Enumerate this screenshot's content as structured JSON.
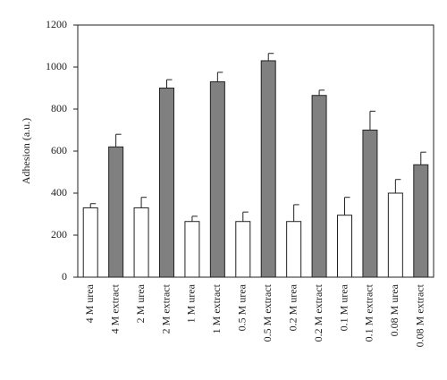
{
  "chart_data": {
    "type": "bar",
    "y_label": "Adhesion (a.u.)",
    "categories": [
      "4 M urea",
      "4 M extract",
      "2 M urea",
      "2 M extract",
      "1 M urea",
      "1 M extract",
      "0.5 M urea",
      "0.5 M extract",
      "0.2 M urea",
      "0.2 M extract",
      "0.1 M urea",
      "0.1 M extract",
      "0.08 M urea",
      "0.08 M extract"
    ],
    "values": [
      330,
      620,
      330,
      900,
      265,
      930,
      265,
      1030,
      265,
      865,
      295,
      700,
      400,
      535
    ],
    "errors": [
      20,
      60,
      50,
      40,
      25,
      45,
      45,
      35,
      80,
      25,
      85,
      90,
      65,
      60
    ],
    "colors": [
      "#ffffff",
      "#808080",
      "#ffffff",
      "#808080",
      "#ffffff",
      "#808080",
      "#ffffff",
      "#808080",
      "#ffffff",
      "#808080",
      "#ffffff",
      "#808080",
      "#ffffff",
      "#808080"
    ],
    "ylim": [
      0,
      1200
    ],
    "yticks": [
      0,
      200,
      400,
      600,
      800,
      1000,
      1200
    ]
  }
}
